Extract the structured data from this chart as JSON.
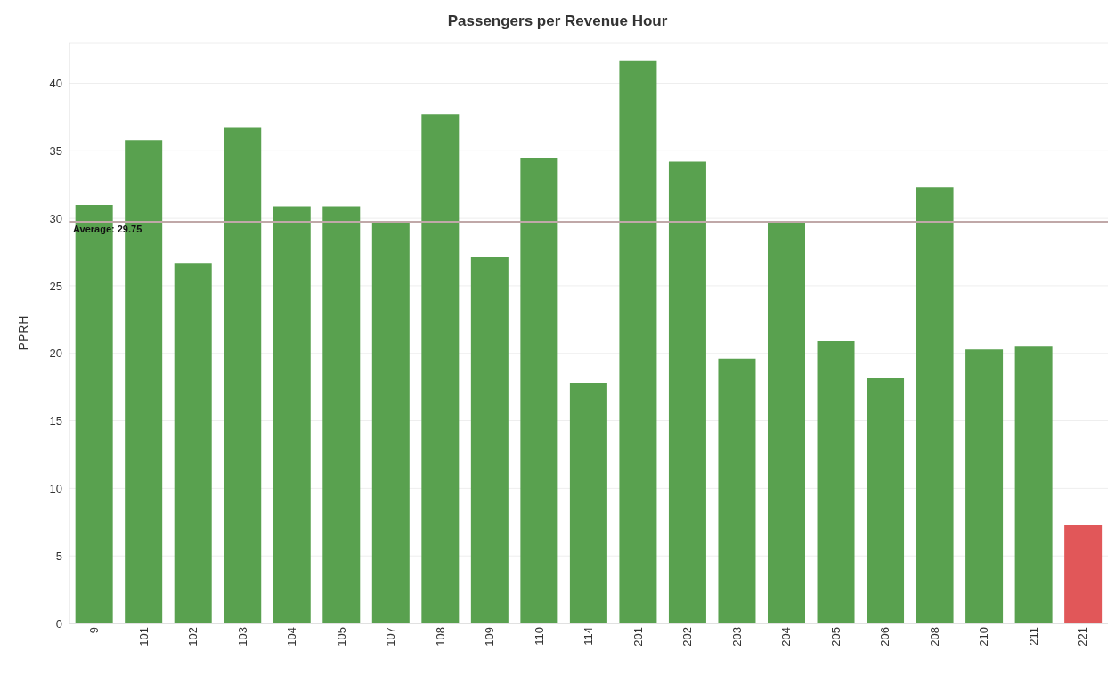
{
  "chart_data": {
    "type": "bar",
    "title": "Passengers per Revenue Hour",
    "ylabel": "PPRH",
    "categories": [
      "9",
      "101",
      "102",
      "103",
      "104",
      "105",
      "107",
      "108",
      "109",
      "110",
      "114",
      "201",
      "202",
      "203",
      "204",
      "205",
      "206",
      "208",
      "210",
      "211",
      "221"
    ],
    "values": [
      31.0,
      35.8,
      26.7,
      36.7,
      30.9,
      30.9,
      29.7,
      37.7,
      27.1,
      34.5,
      17.8,
      41.7,
      34.2,
      19.6,
      29.7,
      20.9,
      18.2,
      32.3,
      20.3,
      20.5,
      7.3
    ],
    "colors": [
      "#59a14f",
      "#59a14f",
      "#59a14f",
      "#59a14f",
      "#59a14f",
      "#59a14f",
      "#59a14f",
      "#59a14f",
      "#59a14f",
      "#59a14f",
      "#59a14f",
      "#59a14f",
      "#59a14f",
      "#59a14f",
      "#59a14f",
      "#59a14f",
      "#59a14f",
      "#59a14f",
      "#59a14f",
      "#59a14f",
      "#e15759"
    ],
    "ylim": [
      0,
      43
    ],
    "yticks": [
      0,
      5,
      10,
      15,
      20,
      25,
      30,
      35,
      40
    ],
    "grid": "y",
    "ref_lines": [
      {
        "axis": "y",
        "value": 29.75,
        "label": "Average: 29.75",
        "color": "#c0a8a8"
      }
    ]
  }
}
